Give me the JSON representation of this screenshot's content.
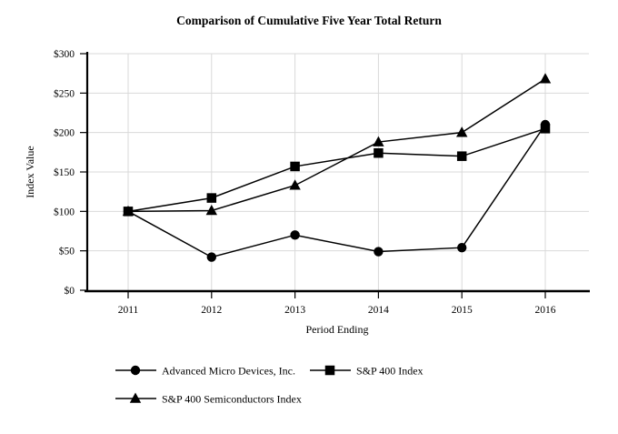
{
  "chart_data": {
    "type": "line",
    "title": "Comparison of Cumulative Five Year Total Return",
    "xlabel": "Period Ending",
    "ylabel": "Index Value",
    "categories": [
      "2011",
      "2012",
      "2013",
      "2014",
      "2015",
      "2016"
    ],
    "y_tick_values": [
      0,
      50,
      100,
      150,
      200,
      250,
      300
    ],
    "y_tick_labels": [
      "$0",
      "$50",
      "$100",
      "$150",
      "$200",
      "$250",
      "$300"
    ],
    "ylim": [
      0,
      300
    ],
    "grid": true,
    "legend_position": "bottom",
    "series": [
      {
        "name": "Advanced Micro Devices, Inc.",
        "marker": "circle",
        "values": [
          100,
          42,
          70,
          49,
          54,
          210
        ]
      },
      {
        "name": "S&P 400 Index",
        "marker": "square",
        "values": [
          100,
          117,
          157,
          174,
          170,
          205
        ]
      },
      {
        "name": "S&P 400 Semiconductors Index",
        "marker": "triangle",
        "values": [
          100,
          101,
          133,
          188,
          200,
          268
        ]
      }
    ],
    "colors": {
      "line": "#000000",
      "marker": "#000000",
      "grid": "#d9d9d9",
      "axis": "#000000",
      "text": "#000000",
      "background": "#ffffff"
    }
  }
}
